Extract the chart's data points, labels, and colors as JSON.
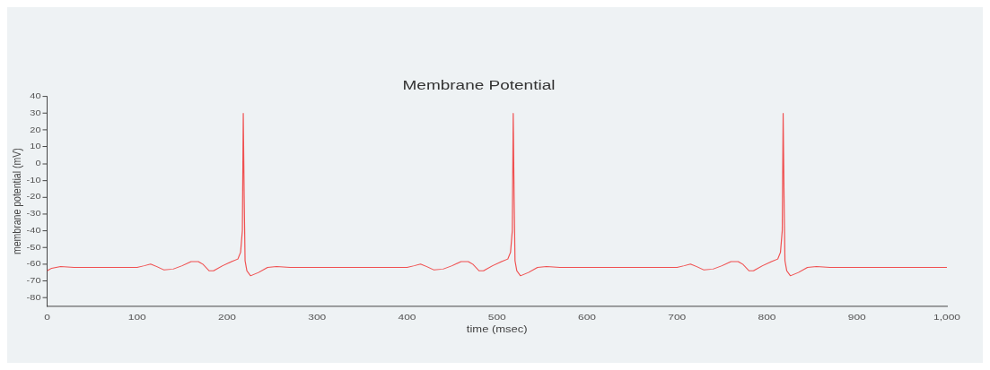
{
  "chart_data": {
    "type": "line",
    "title": "Membrane Potential",
    "xlabel": "time (msec)",
    "ylabel": "membrane potential (mV)",
    "xlim": [
      0,
      1000
    ],
    "xticks": [
      0,
      100,
      200,
      300,
      400,
      500,
      600,
      700,
      800,
      900,
      {
        "value": 1000,
        "label": "1,000"
      }
    ],
    "ylim": [
      -85,
      40
    ],
    "yticks": [
      -80,
      -70,
      -60,
      -50,
      -40,
      -30,
      -20,
      -10,
      0,
      10,
      20,
      30,
      40
    ],
    "grid": false,
    "legend": false,
    "marker": "none",
    "line_style": "solid",
    "series": [
      {
        "color": "#f05050",
        "x": [
          0,
          5,
          15,
          30,
          60,
          100,
          108,
          115,
          122,
          130,
          140,
          150,
          160,
          168,
          173,
          180,
          185,
          195,
          205,
          212,
          215,
          217,
          218,
          219,
          220,
          222,
          226,
          235,
          245,
          255,
          270,
          300,
          360,
          400,
          408,
          415,
          422,
          430,
          440,
          450,
          460,
          468,
          473,
          480,
          485,
          495,
          505,
          512,
          515,
          517,
          518,
          519,
          520,
          522,
          526,
          535,
          545,
          555,
          570,
          600,
          660,
          700,
          708,
          715,
          722,
          730,
          740,
          750,
          760,
          768,
          773,
          780,
          785,
          795,
          805,
          812,
          815,
          817,
          818,
          819,
          820,
          822,
          826,
          835,
          845,
          855,
          870,
          900,
          1000
        ],
        "values": [
          -64,
          -62.5,
          -61.5,
          -62,
          -62,
          -62,
          -61,
          -60,
          -61.5,
          -63.5,
          -63,
          -61,
          -58.5,
          -58.5,
          -60,
          -64,
          -64,
          -61,
          -58.5,
          -57,
          -53,
          -40,
          30,
          -20,
          -58,
          -64,
          -67,
          -65,
          -62,
          -61.5,
          -62,
          -62,
          -62,
          -62,
          -61,
          -60,
          -61.5,
          -63.5,
          -63,
          -61,
          -58.5,
          -58.5,
          -60,
          -64,
          -64,
          -61,
          -58.5,
          -57,
          -53,
          -40,
          30,
          -20,
          -58,
          -64,
          -67,
          -65,
          -62,
          -61.5,
          -62,
          -62,
          -62,
          -62,
          -61,
          -60,
          -61.5,
          -63.5,
          -63,
          -61,
          -58.5,
          -58.5,
          -60,
          -64,
          -64,
          -61,
          -58.5,
          -57,
          -53,
          -40,
          30,
          -20,
          -58,
          -64,
          -67,
          -65,
          -62,
          -61.5,
          -62,
          -62,
          -62
        ]
      }
    ]
  }
}
